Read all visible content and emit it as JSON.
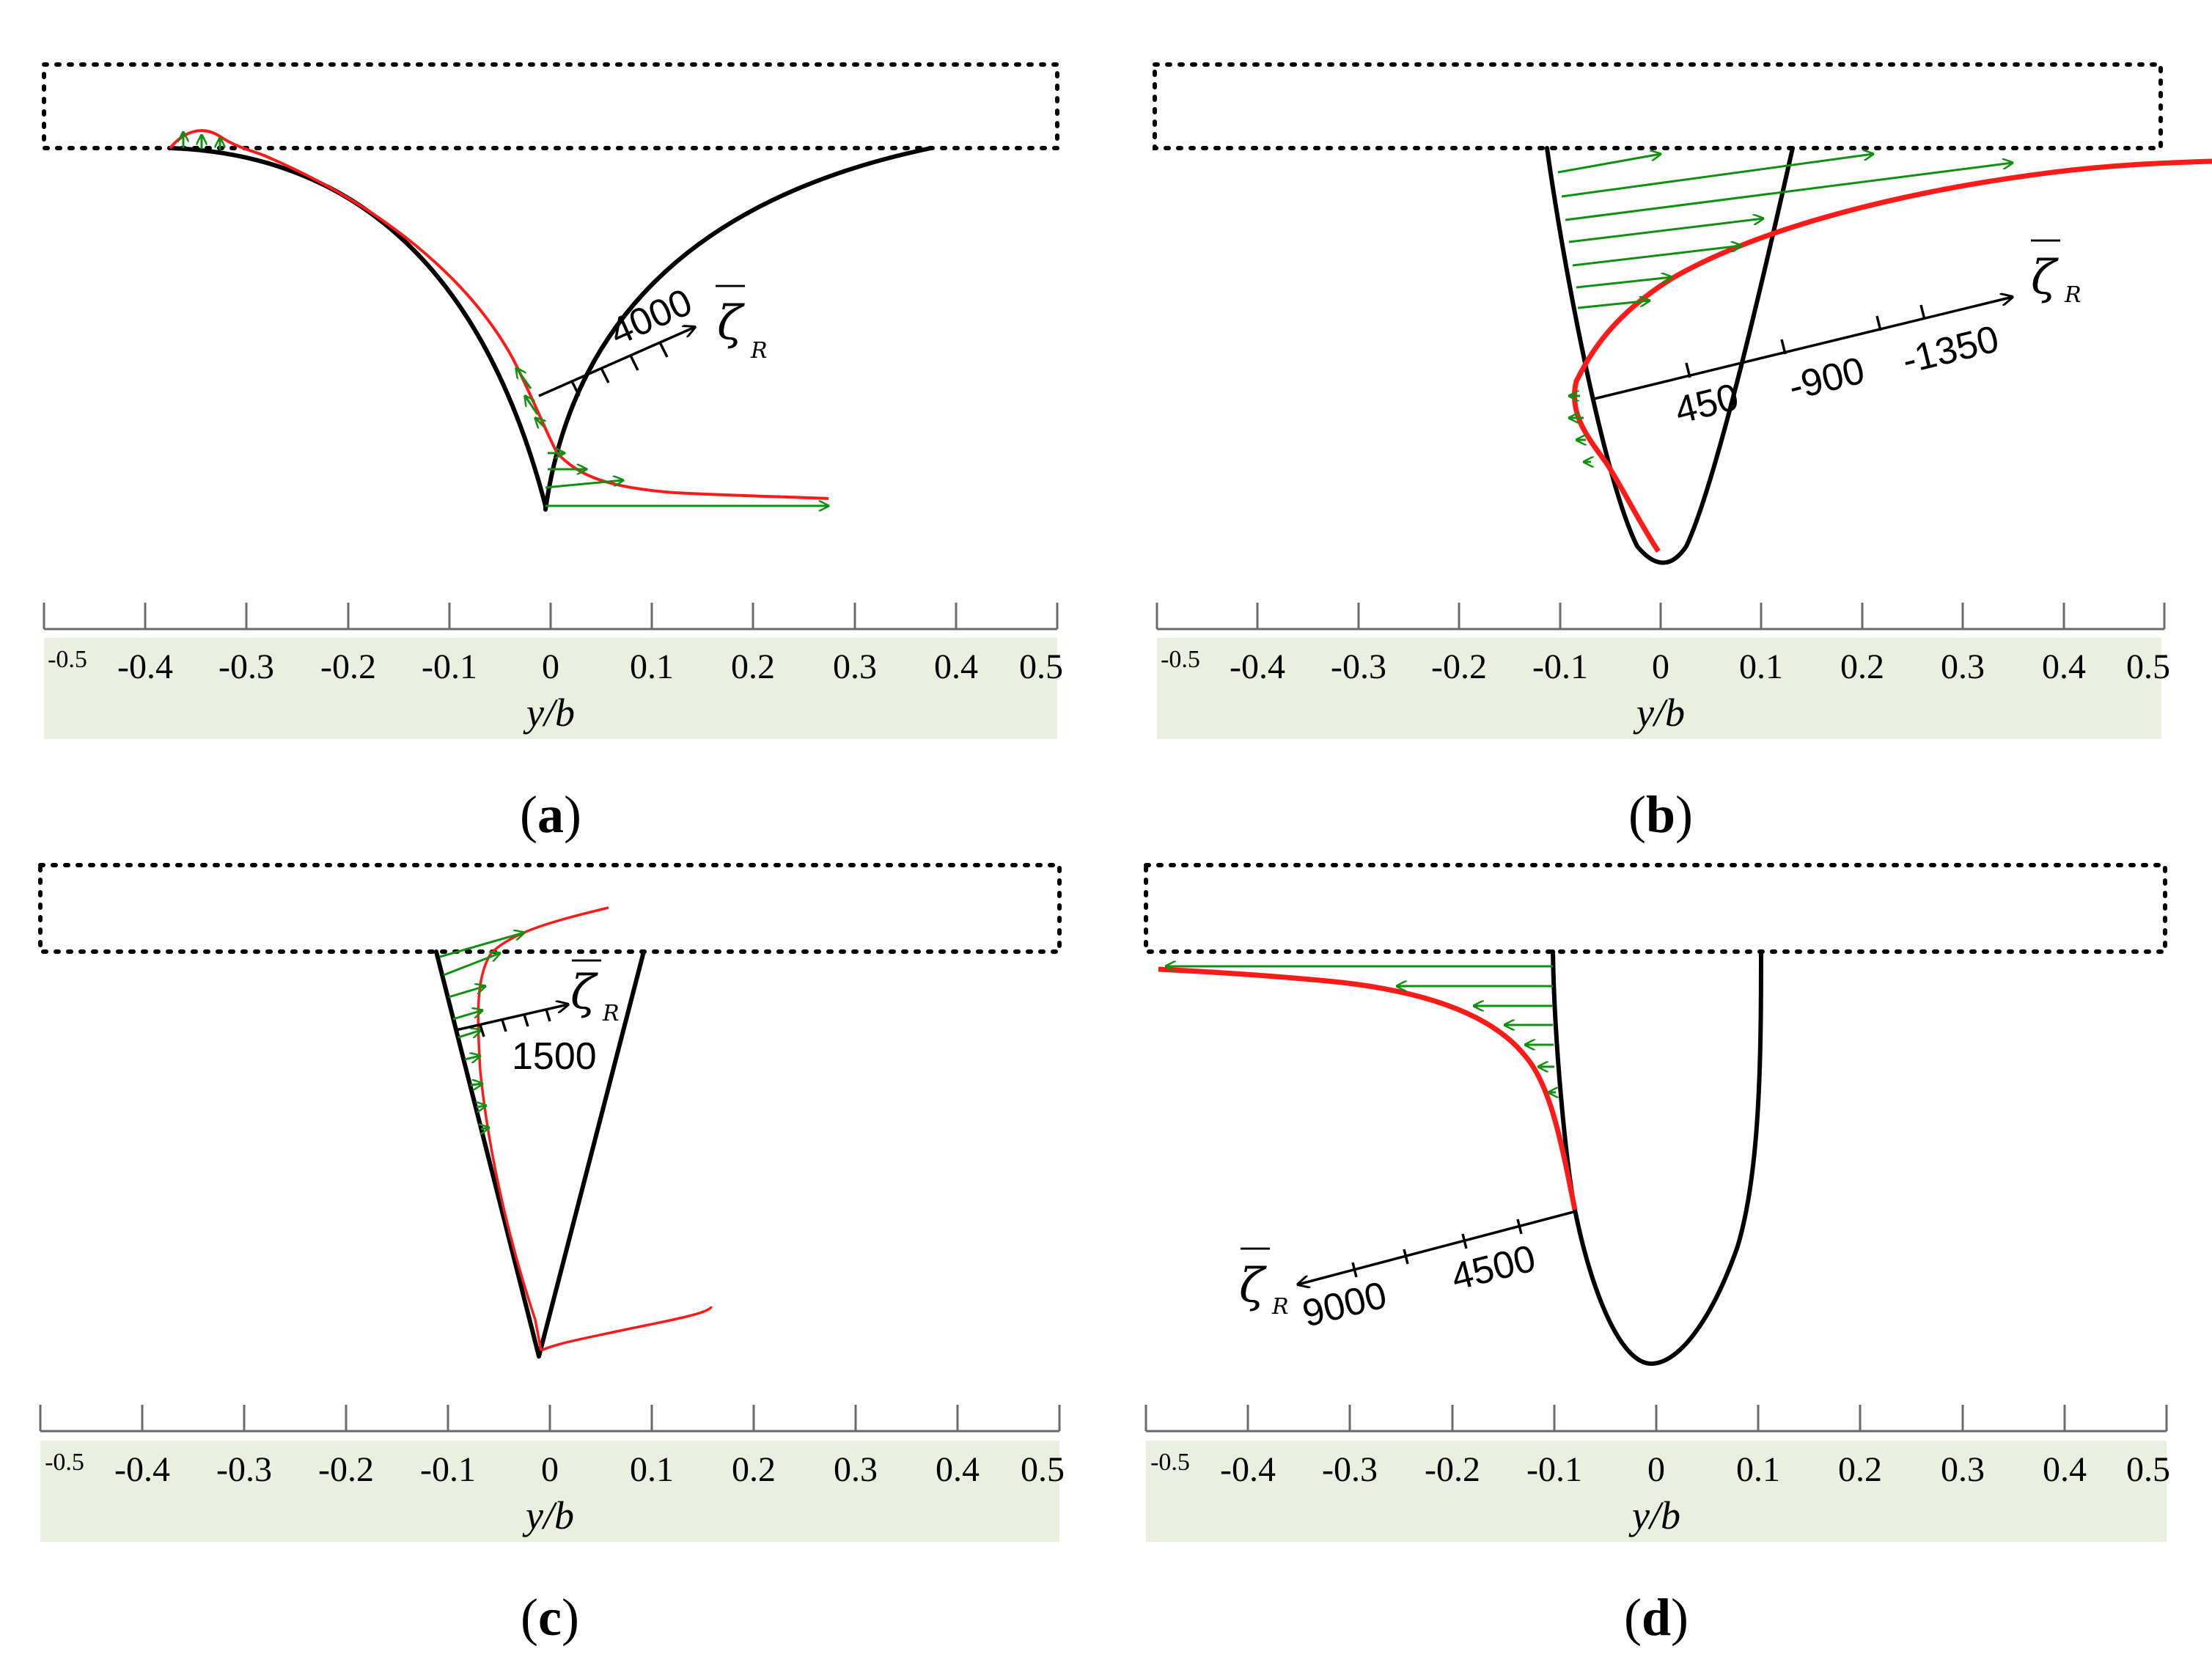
{
  "figure": {
    "x_axis_title": "y/b",
    "x_tick_labels": [
      "-0.5",
      "-0.4",
      "-0.3",
      "-0.2",
      "-0.1",
      "0",
      "0.1",
      "0.2",
      "0.3",
      "0.4",
      "0.5"
    ],
    "zeta_symbol": "ζ",
    "zeta_subscript": "R",
    "zeta_overbar": "—"
  },
  "panels": [
    {
      "id": "a",
      "label_open": "(",
      "label_letter": "a",
      "label_close": ")",
      "scale_ticks": [
        "4000"
      ],
      "colors": {
        "profile": "#000000",
        "distribution": "#ff1a1a",
        "vectors": "#109010"
      }
    },
    {
      "id": "b",
      "label_open": "(",
      "label_letter": "b",
      "label_close": ")",
      "scale_ticks": [
        "450",
        "-900",
        "-1350"
      ],
      "colors": {
        "profile": "#000000",
        "distribution": "#ff1a1a",
        "vectors": "#109010"
      }
    },
    {
      "id": "c",
      "label_open": "(",
      "label_letter": "c",
      "label_close": ")",
      "scale_ticks": [
        "1500"
      ],
      "colors": {
        "profile": "#000000",
        "distribution": "#ff1a1a",
        "vectors": "#109010"
      }
    },
    {
      "id": "d",
      "label_open": "(",
      "label_letter": "d",
      "label_close": ")",
      "scale_ticks": [
        "9000",
        "4500"
      ],
      "colors": {
        "profile": "#000000",
        "distribution": "#ff1a1a",
        "vectors": "#109010"
      }
    }
  ]
}
